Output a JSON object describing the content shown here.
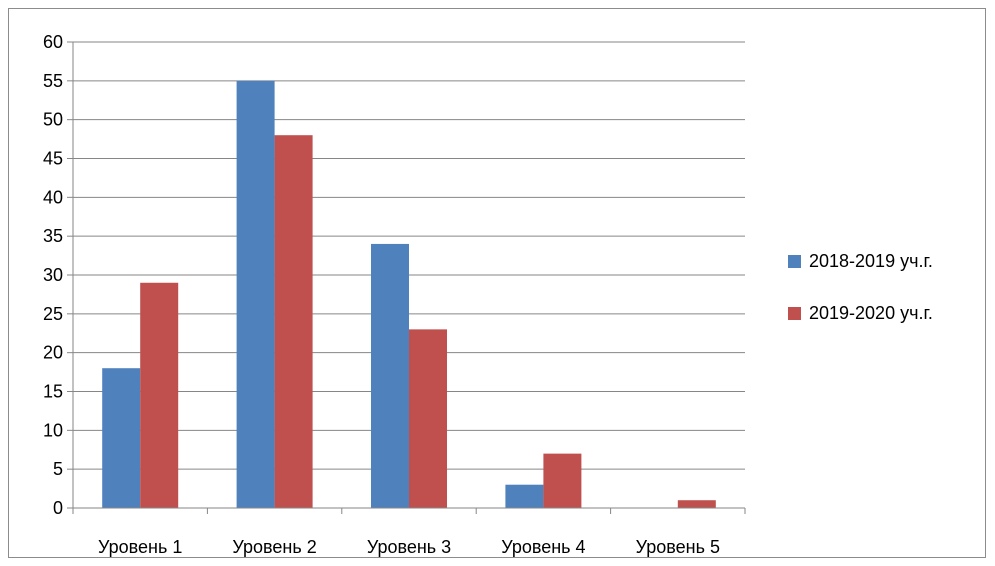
{
  "chart_data": {
    "type": "bar",
    "categories": [
      "Уровень 1",
      "Уровень 2",
      "Уровень 3",
      "Уровень 4",
      "Уровень 5"
    ],
    "series": [
      {
        "name": "2018-2019 уч.г.",
        "values": [
          18,
          55,
          34,
          3,
          0
        ],
        "color": "#4f81bd"
      },
      {
        "name": "2019-2020 уч.г.",
        "values": [
          29,
          48,
          23,
          7,
          1
        ],
        "color": "#c0504d"
      }
    ],
    "ylim": [
      0,
      60
    ],
    "yticks": [
      0,
      5,
      10,
      15,
      20,
      25,
      30,
      35,
      40,
      45,
      50,
      55,
      60
    ],
    "grid": true,
    "legend_position": "right",
    "title": "",
    "xlabel": "",
    "ylabel": ""
  }
}
